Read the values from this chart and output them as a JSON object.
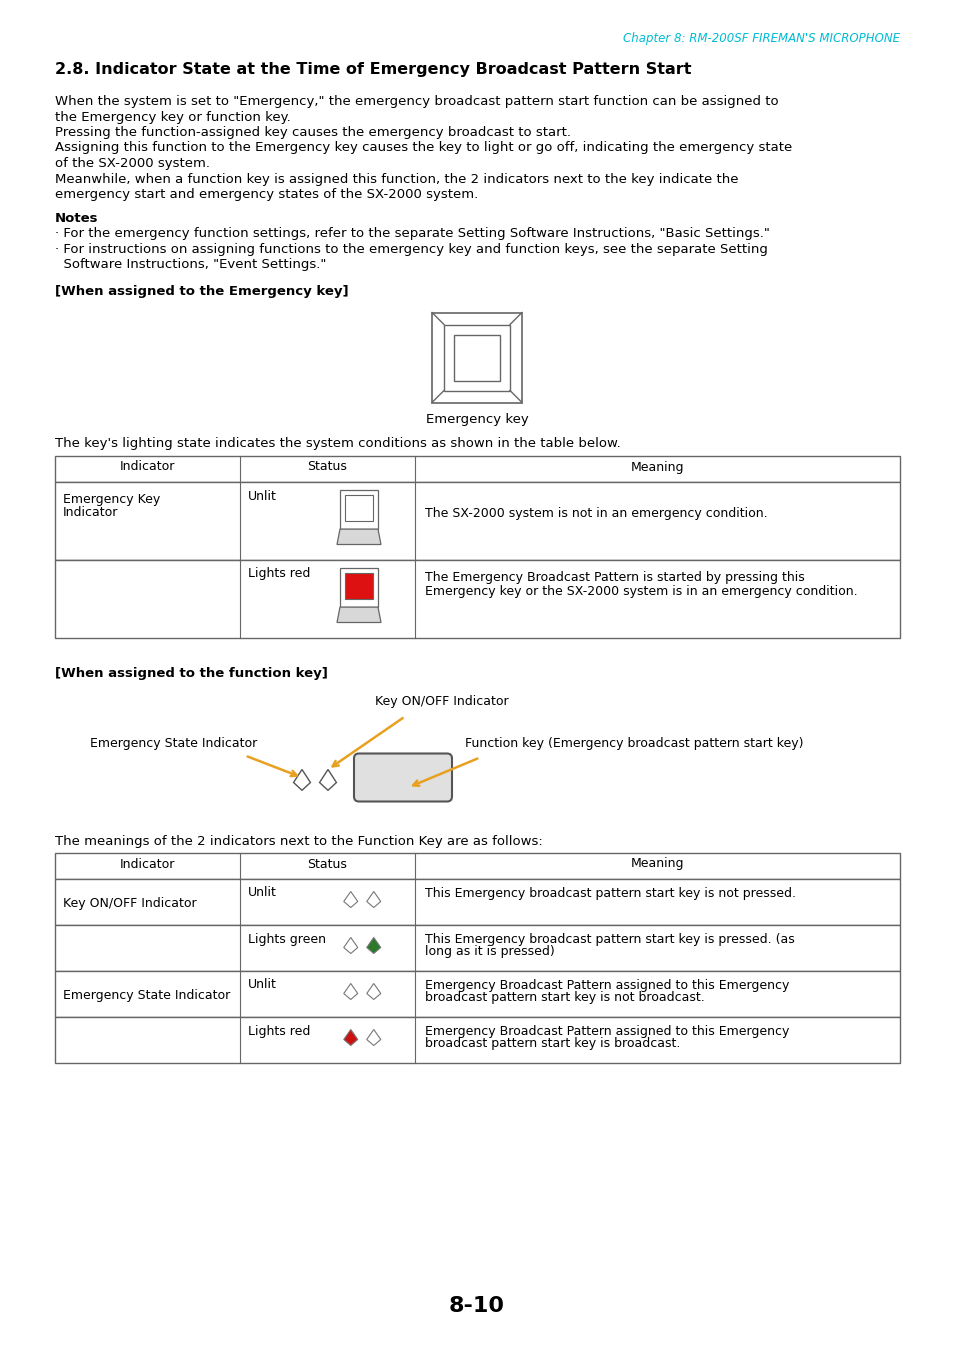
{
  "page_header": "Chapter 8: RM-200SF FIREMAN'S MICROPHONE",
  "header_color": "#00bcd4",
  "title": "2.8. Indicator State at the Time of Emergency Broadcast Pattern Start",
  "body_lines": [
    "When the system is set to \"Emergency,\" the emergency broadcast pattern start function can be assigned to",
    "the Emergency key or function key.",
    "Pressing the function-assigned key causes the emergency broadcast to start.",
    "Assigning this function to the Emergency key causes the key to light or go off, indicating the emergency state",
    "of the SX-2000 system.",
    "Meanwhile, when a function key is assigned this function, the 2 indicators next to the key indicate the",
    "emergency start and emergency states of the SX-2000 system."
  ],
  "notes_header": "Notes",
  "notes_lines": [
    "· For the emergency function settings, refer to the separate Setting Software Instructions, \"Basic Settings.\"",
    "· For instructions on assigning functions to the emergency key and function keys, see the separate Setting",
    "  Software Instructions, \"Event Settings.\""
  ],
  "sec1_header": "[When assigned to the Emergency key]",
  "emergency_key_label": "Emergency key",
  "table1_intro": "The key's lighting state indicates the system conditions as shown in the table below.",
  "table1_headers": [
    "Indicator",
    "Status",
    "Meaning"
  ],
  "sec2_header": "[When assigned to the function key]",
  "label_key_onoff": "Key ON/OFF Indicator",
  "label_esi": "Emergency State Indicator",
  "label_fkey": "Function key (Emergency broadcast pattern start key)",
  "table2_intro": "The meanings of the 2 indicators next to the Function Key are as follows:",
  "table2_headers": [
    "Indicator",
    "Status",
    "Meaning"
  ],
  "page_number": "8-10",
  "bg_color": "#ffffff",
  "text_color": "#000000",
  "header_text_color": "#00bcd4",
  "arrow_color": "#e8a020",
  "border_color": "#666666"
}
